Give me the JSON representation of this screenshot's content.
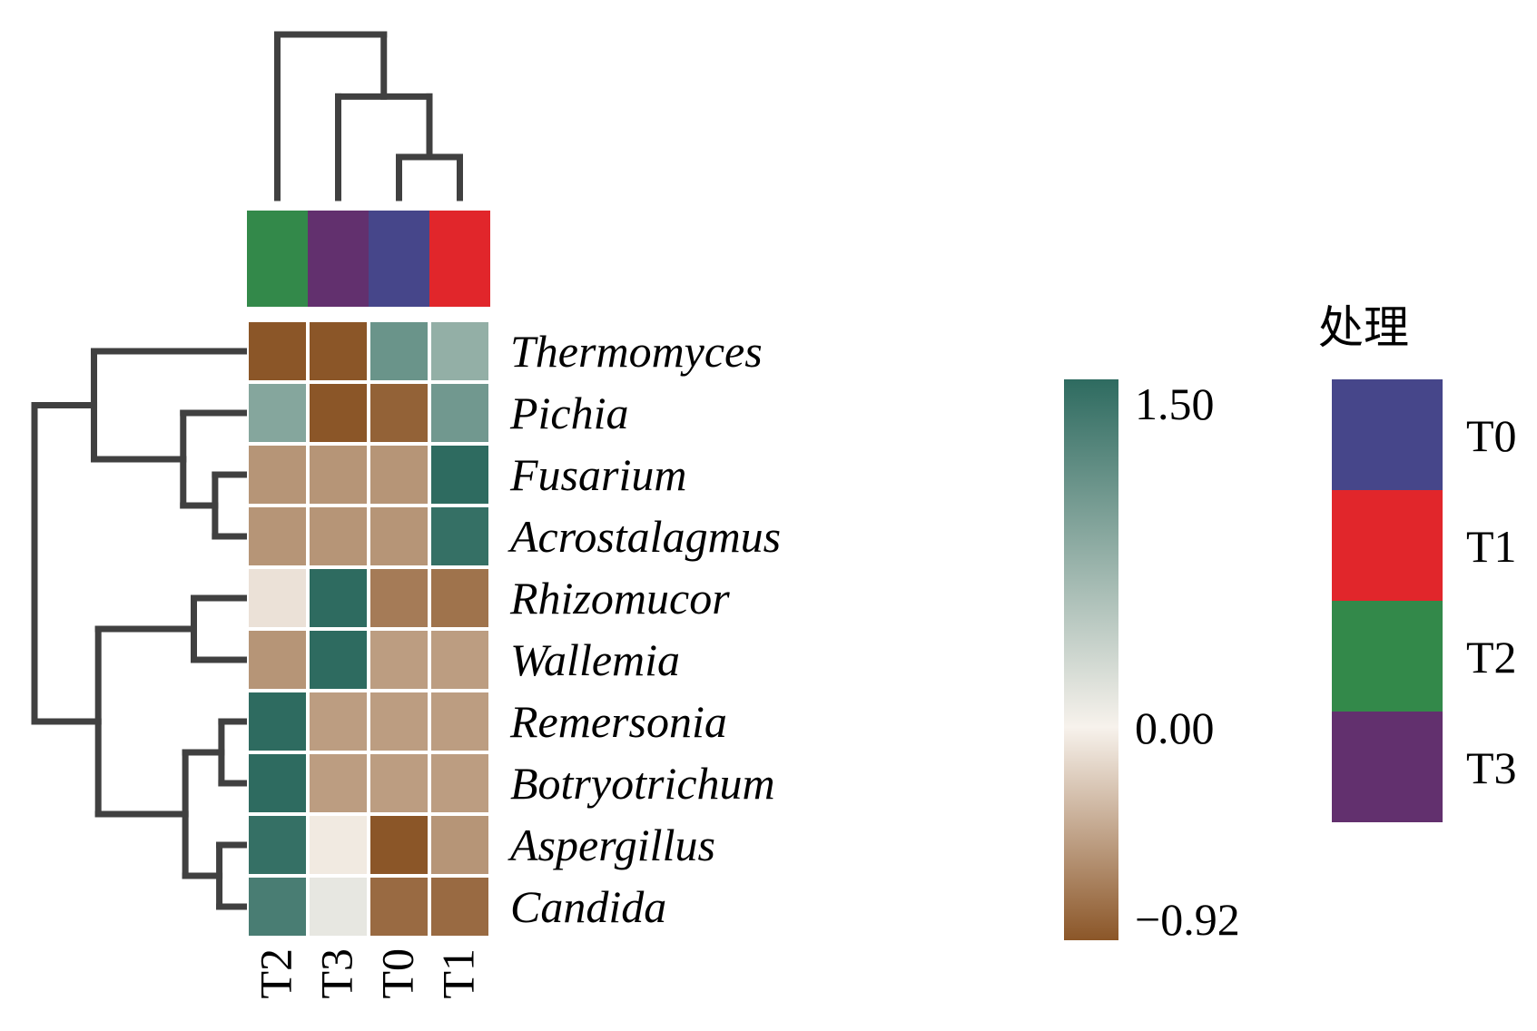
{
  "chart_data": {
    "type": "heatmap",
    "columns": [
      "T2",
      "T3",
      "T0",
      "T1"
    ],
    "rows": [
      "Thermomyces",
      "Pichia",
      "Fusarium",
      "Acrostalagmus",
      "Rhizomucor",
      "Wallemia",
      "Remersonia",
      "Botryotrichum",
      "Aspergillus",
      "Candida"
    ],
    "values": [
      [
        -0.92,
        -0.92,
        1.05,
        0.75
      ],
      [
        0.85,
        -0.92,
        -0.85,
        1.0
      ],
      [
        -0.55,
        -0.55,
        -0.55,
        1.5
      ],
      [
        -0.55,
        -0.55,
        -0.55,
        1.45
      ],
      [
        -0.1,
        1.5,
        -0.7,
        -0.75
      ],
      [
        -0.55,
        1.5,
        -0.5,
        -0.5
      ],
      [
        1.5,
        -0.5,
        -0.5,
        -0.5
      ],
      [
        1.5,
        -0.5,
        -0.5,
        -0.5
      ],
      [
        1.45,
        -0.05,
        -0.92,
        -0.55
      ],
      [
        1.3,
        0.12,
        -0.8,
        -0.8
      ]
    ],
    "colorbar": {
      "max": 1.5,
      "mid": 0.0,
      "min": -0.92,
      "tick_labels": [
        "1.50",
        "0.00",
        "−0.92"
      ],
      "color_high": "#2e6b60",
      "color_mid": "#f7f2ec",
      "color_low": "#8b5628"
    },
    "group_legend": {
      "title": "处理",
      "items": [
        {
          "label": "T0",
          "color": "#46468a"
        },
        {
          "label": "T1",
          "color": "#e1262b"
        },
        {
          "label": "T2",
          "color": "#33894a"
        },
        {
          "label": "T3",
          "color": "#62306e"
        }
      ]
    },
    "column_groups": [
      "T2",
      "T3",
      "T0",
      "T1"
    ],
    "column_dendrogram": [
      {
        "merge": [
          "T0",
          "T1"
        ],
        "height": 0.25
      },
      {
        "merge": [
          "T3",
          "T0+T1"
        ],
        "height": 0.62
      },
      {
        "merge": [
          "T2",
          "T3+T0+T1"
        ],
        "height": 1.0
      }
    ],
    "row_dendrogram": [
      {
        "merge": [
          "Fusarium",
          "Acrostalagmus"
        ],
        "height": 0.15
      },
      {
        "merge": [
          "Pichia",
          "Fusarium+Acrostalagmus"
        ],
        "height": 0.3
      },
      {
        "merge": [
          "Thermomyces",
          "Pichia+Fusarium+Acrostalagmus"
        ],
        "height": 0.72
      },
      {
        "merge": [
          "Rhizomucor",
          "Wallemia"
        ],
        "height": 0.25
      },
      {
        "merge": [
          "Remersonia",
          "Botryotrichum"
        ],
        "height": 0.12
      },
      {
        "merge": [
          "Aspergillus",
          "Candida"
        ],
        "height": 0.13
      },
      {
        "merge": [
          "Remersonia+Botryotrichum",
          "Aspergillus+Candida"
        ],
        "height": 0.29
      },
      {
        "merge": [
          "Rhizomucor+Wallemia",
          "Remersonia+Botryotrichum+Aspergillus+Candida"
        ],
        "height": 0.7
      },
      {
        "merge": [
          "upper",
          "lower"
        ],
        "height": 1.0
      }
    ]
  }
}
